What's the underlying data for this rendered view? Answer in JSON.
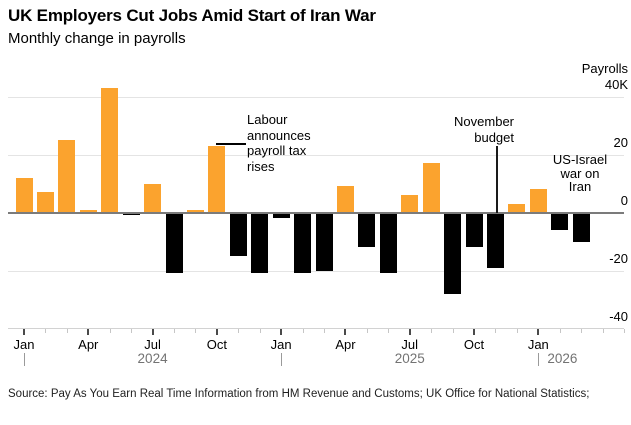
{
  "header": {
    "title": "UK Employers Cut Jobs Amid Start of Iran War",
    "subtitle": "Monthly change in payrolls"
  },
  "footer": {
    "source": "Source: Pay As You Earn Real Time Information from HM Revenue and Customs; UK Office for National Statistics;"
  },
  "chart_data": {
    "type": "bar",
    "title": "UK Employers Cut Jobs Amid Start of Iran War",
    "subtitle": "Monthly change in payrolls",
    "ylabel": "Payrolls",
    "unit": "thousands of payrolls (K)",
    "categories": [
      "Jan 2024",
      "Feb 2024",
      "Mar 2024",
      "Apr 2024",
      "May 2024",
      "Jun 2024",
      "Jul 2024",
      "Aug 2024",
      "Sep 2024",
      "Oct 2024",
      "Nov 2024",
      "Dec 2024",
      "Jan 2025",
      "Feb 2025",
      "Mar 2025",
      "Apr 2025",
      "May 2025",
      "Jun 2025",
      "Jul 2025",
      "Aug 2025",
      "Sep 2025",
      "Oct 2025",
      "Nov 2025",
      "Dec 2025",
      "Jan 2026",
      "Feb 2026",
      "Mar 2026"
    ],
    "values": [
      12,
      7,
      25,
      1,
      43,
      -1,
      10,
      -21,
      0.7,
      23,
      -15,
      -21,
      -2,
      -21,
      -20,
      9,
      -12,
      -21,
      6,
      17,
      -28,
      -12,
      -19,
      3,
      8,
      -6,
      -10
    ],
    "ylim": [
      -40,
      45
    ],
    "grid": "horizontal",
    "legend_position": "none",
    "yticks": [
      {
        "value": 40,
        "label": "40K"
      },
      {
        "value": 20,
        "label": "20"
      },
      {
        "value": 0,
        "label": "0"
      },
      {
        "value": -20,
        "label": "-20"
      },
      {
        "value": -40,
        "label": "-40"
      }
    ],
    "xticks": [
      {
        "index": 0,
        "label": "Jan"
      },
      {
        "index": 3,
        "label": "Apr"
      },
      {
        "index": 6,
        "label": "Jul"
      },
      {
        "index": 9,
        "label": "Oct"
      },
      {
        "index": 12,
        "label": "Jan"
      },
      {
        "index": 15,
        "label": "Apr"
      },
      {
        "index": 18,
        "label": "Jul"
      },
      {
        "index": 21,
        "label": "Oct"
      },
      {
        "index": 24,
        "label": "Jan"
      }
    ],
    "year_labels": [
      "2024",
      "2025",
      "2026"
    ],
    "year_start_indices": [
      0,
      12,
      24
    ],
    "colors": {
      "positive": "#FBA32E",
      "negative": "#000000"
    },
    "annotations": [
      {
        "id": "labour",
        "lines": [
          "Labour",
          "announces",
          "payroll tax",
          "rises"
        ],
        "target": "Oct 2024"
      },
      {
        "id": "november-budget",
        "lines": [
          "November",
          "budget"
        ],
        "target": "Nov 2025"
      },
      {
        "id": "us-israel",
        "lines": [
          "US-Israel",
          "war on",
          "Iran"
        ],
        "target": "early 2026"
      }
    ]
  }
}
